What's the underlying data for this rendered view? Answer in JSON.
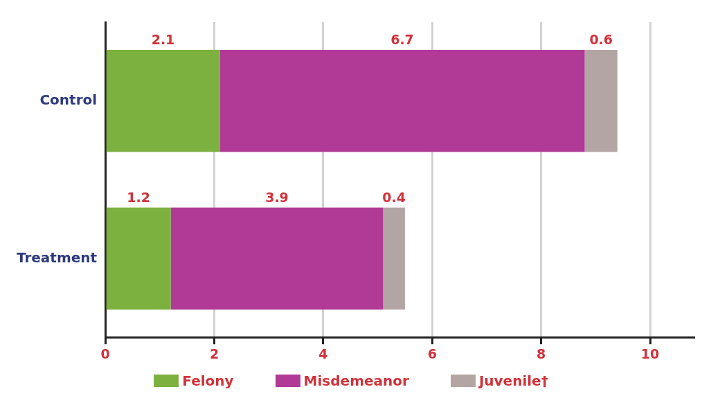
{
  "chart_data": {
    "type": "bar",
    "orientation": "horizontal",
    "stacked": true,
    "categories": [
      "Control",
      "Treatment"
    ],
    "series": [
      {
        "name": "Felony",
        "color": "#7cb03f",
        "values": [
          2.1,
          1.2
        ]
      },
      {
        "name": "Misdemeanor",
        "color": "#b03a96",
        "values": [
          6.7,
          3.9
        ]
      },
      {
        "name": "Juvenile†",
        "color": "#b3a5a3",
        "values": [
          0.6,
          0.4
        ]
      }
    ],
    "xlim": [
      0,
      10.8
    ],
    "xticks": [
      0,
      2,
      4,
      6,
      8,
      10
    ],
    "grid": "x",
    "legend": "bottom",
    "data_labels": true
  }
}
